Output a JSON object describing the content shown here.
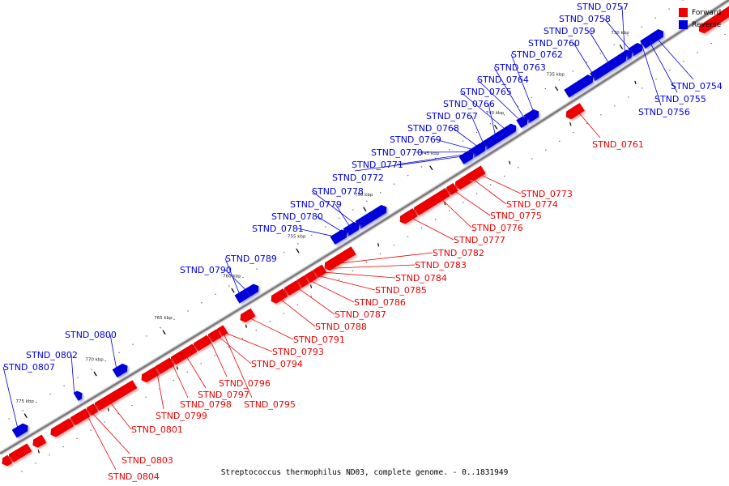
{
  "caption": "Streptococcus thermophilus ND03, complete genome. - 0..1831949",
  "legend": {
    "forward": {
      "label": "Forward",
      "color": "#ee0000"
    },
    "reverse": {
      "label": "Reverse",
      "color": "#0000dd"
    }
  },
  "colors": {
    "forward": "#ee0000",
    "reverse": "#0000dd",
    "axis": "#777777"
  },
  "ticks": [
    "730 kbp",
    "735 kbp",
    "740 kbp",
    "745 kbp",
    "750 kbp",
    "755 kbp",
    "760 kbp",
    "765 kbp",
    "770 kbp",
    "775 kbp"
  ],
  "genes": [
    {
      "id": "STND_0754",
      "strand": "reverse"
    },
    {
      "id": "STND_0755",
      "strand": "reverse"
    },
    {
      "id": "STND_0756",
      "strand": "reverse"
    },
    {
      "id": "STND_0757",
      "strand": "reverse"
    },
    {
      "id": "STND_0758",
      "strand": "reverse"
    },
    {
      "id": "STND_0759",
      "strand": "reverse"
    },
    {
      "id": "STND_0760",
      "strand": "reverse"
    },
    {
      "id": "STND_0761",
      "strand": "forward"
    },
    {
      "id": "STND_0762",
      "strand": "reverse"
    },
    {
      "id": "STND_0763",
      "strand": "reverse"
    },
    {
      "id": "STND_0764",
      "strand": "reverse"
    },
    {
      "id": "STND_0765",
      "strand": "reverse"
    },
    {
      "id": "STND_0766",
      "strand": "reverse"
    },
    {
      "id": "STND_0767",
      "strand": "reverse"
    },
    {
      "id": "STND_0768",
      "strand": "reverse"
    },
    {
      "id": "STND_0769",
      "strand": "reverse"
    },
    {
      "id": "STND_0770",
      "strand": "reverse"
    },
    {
      "id": "STND_0771",
      "strand": "reverse"
    },
    {
      "id": "STND_0772",
      "strand": "reverse"
    },
    {
      "id": "STND_0773",
      "strand": "forward"
    },
    {
      "id": "STND_0774",
      "strand": "forward"
    },
    {
      "id": "STND_0775",
      "strand": "forward"
    },
    {
      "id": "STND_0776",
      "strand": "forward"
    },
    {
      "id": "STND_0777",
      "strand": "forward"
    },
    {
      "id": "STND_0778",
      "strand": "reverse"
    },
    {
      "id": "STND_0779",
      "strand": "reverse"
    },
    {
      "id": "STND_0780",
      "strand": "reverse"
    },
    {
      "id": "STND_0781",
      "strand": "reverse"
    },
    {
      "id": "STND_0782",
      "strand": "forward"
    },
    {
      "id": "STND_0783",
      "strand": "forward"
    },
    {
      "id": "STND_0784",
      "strand": "forward"
    },
    {
      "id": "STND_0785",
      "strand": "forward"
    },
    {
      "id": "STND_0786",
      "strand": "forward"
    },
    {
      "id": "STND_0787",
      "strand": "forward"
    },
    {
      "id": "STND_0788",
      "strand": "forward"
    },
    {
      "id": "STND_0789",
      "strand": "reverse"
    },
    {
      "id": "STND_0790",
      "strand": "reverse"
    },
    {
      "id": "STND_0791",
      "strand": "forward"
    },
    {
      "id": "STND_0793",
      "strand": "forward"
    },
    {
      "id": "STND_0794",
      "strand": "forward"
    },
    {
      "id": "STND_0795",
      "strand": "forward"
    },
    {
      "id": "STND_0796",
      "strand": "forward"
    },
    {
      "id": "STND_0797",
      "strand": "forward"
    },
    {
      "id": "STND_0798",
      "strand": "forward"
    },
    {
      "id": "STND_0799",
      "strand": "forward"
    },
    {
      "id": "STND_0800",
      "strand": "reverse"
    },
    {
      "id": "STND_0801",
      "strand": "forward"
    },
    {
      "id": "STND_0802",
      "strand": "reverse"
    },
    {
      "id": "STND_0803",
      "strand": "forward"
    },
    {
      "id": "STND_0804",
      "strand": "forward"
    },
    {
      "id": "STND_0807",
      "strand": "reverse"
    }
  ]
}
